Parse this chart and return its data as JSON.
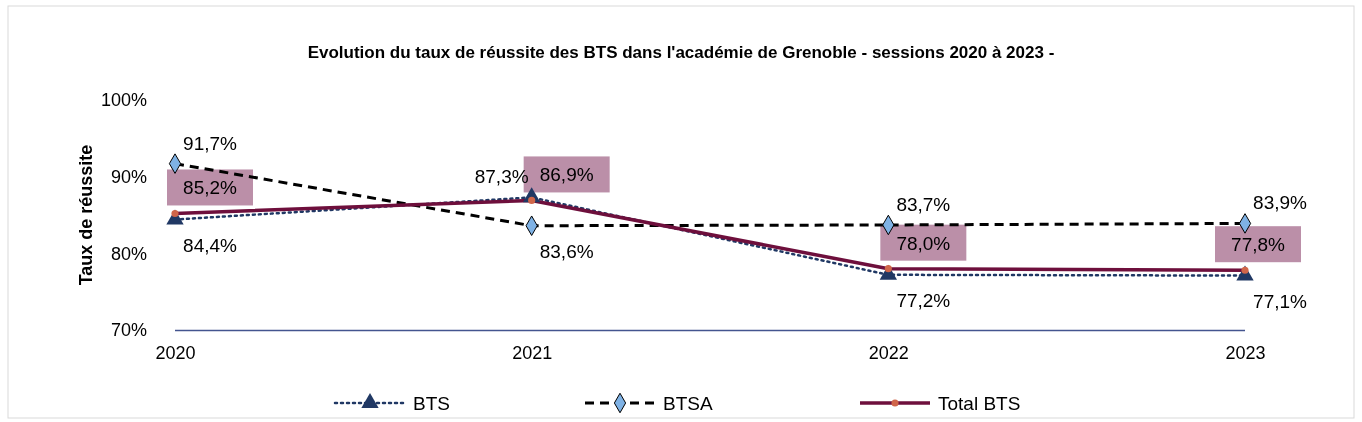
{
  "chart_data": {
    "type": "line",
    "title": "Evolution du taux de réussite des BTS dans l'académie de Grenoble - sessions 2020 à 2023 -",
    "ylabel": "Taux de réussite",
    "categories": [
      "2020",
      "2021",
      "2022",
      "2023"
    ],
    "series": [
      {
        "name": "BTS",
        "color": "#203864",
        "values": [
          84.4,
          87.3,
          77.2,
          77.1
        ],
        "marker": "triangle",
        "line_style": "dotted",
        "value_labels": [
          "84,4%",
          "87,3%",
          "77,2%",
          "77,1%"
        ]
      },
      {
        "name": "BTSA",
        "color": "#000000",
        "values": [
          91.7,
          83.6,
          83.7,
          83.9
        ],
        "marker": "diamond",
        "line_style": "dashed",
        "value_labels": [
          "91,7%",
          "83,6%",
          "83,7%",
          "83,9%"
        ]
      },
      {
        "name": "Total BTS",
        "color": "#6e0f3c",
        "values": [
          85.2,
          86.9,
          78.0,
          77.8
        ],
        "marker": "circle",
        "line_style": "solid",
        "value_labels": [
          "85,2%",
          "86,9%",
          "78,0%",
          "77,8%"
        ]
      }
    ],
    "ylim": [
      70,
      100
    ],
    "yticks": [
      {
        "value": 70,
        "label": "70%"
      },
      {
        "value": 80,
        "label": "80%"
      },
      {
        "value": 90,
        "label": "90%"
      },
      {
        "value": 100,
        "label": "100%"
      }
    ],
    "grid": false,
    "legend": "bottom"
  }
}
